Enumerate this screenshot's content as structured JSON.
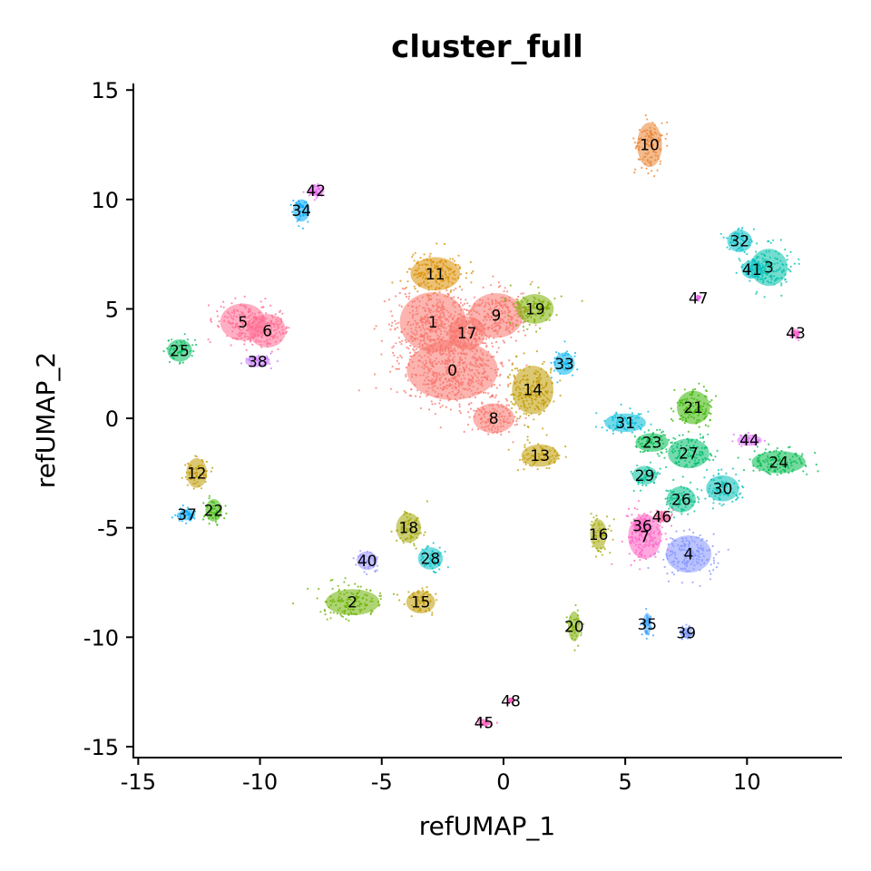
{
  "chart_data": {
    "type": "scatter",
    "title": "cluster_full",
    "xlabel": "refUMAP_1",
    "ylabel": "refUMAP_2",
    "xlim": [
      -15.2,
      13.9
    ],
    "ylim": [
      -15.5,
      15.3
    ],
    "xticks": [
      -15,
      -10,
      -5,
      0,
      5,
      10
    ],
    "xtick_labels": [
      "-15",
      "-10",
      "-5",
      "0",
      "5",
      "10"
    ],
    "yticks": [
      -15,
      -10,
      -5,
      0,
      5,
      10,
      15
    ],
    "ytick_labels": [
      "-15",
      "-10",
      "-5",
      "0",
      "5",
      "10",
      "15"
    ],
    "legend": "none",
    "clusters": [
      {
        "label": "0",
        "x": -2.1,
        "y": 2.2,
        "color": "#F8766D",
        "rx": 2.2,
        "ry": 1.6
      },
      {
        "label": "1",
        "x": -2.9,
        "y": 4.4,
        "color": "#F8766D",
        "rx": 1.6,
        "ry": 1.6
      },
      {
        "label": "2",
        "x": -6.2,
        "y": -8.4,
        "color": "#6BB100",
        "rx": 1.3,
        "ry": 0.7
      },
      {
        "label": "3",
        "x": 10.9,
        "y": 6.9,
        "color": "#00C1AA",
        "rx": 0.9,
        "ry": 1.0
      },
      {
        "label": "4",
        "x": 7.6,
        "y": -6.2,
        "color": "#8494FF",
        "rx": 1.1,
        "ry": 1.0
      },
      {
        "label": "5",
        "x": -10.7,
        "y": 4.4,
        "color": "#FF6C91",
        "rx": 1.1,
        "ry": 1.0
      },
      {
        "label": "6",
        "x": -9.7,
        "y": 4.0,
        "color": "#FF6C91",
        "rx": 0.9,
        "ry": 0.9
      },
      {
        "label": "7",
        "x": 5.8,
        "y": -5.4,
        "color": "#FF61C3",
        "rx": 0.8,
        "ry": 1.2
      },
      {
        "label": "8",
        "x": -0.4,
        "y": 0.0,
        "color": "#F8766D",
        "rx": 1.0,
        "ry": 0.8
      },
      {
        "label": "9",
        "x": -0.3,
        "y": 4.7,
        "color": "#F8766D",
        "rx": 1.3,
        "ry": 1.2
      },
      {
        "label": "10",
        "x": 6.0,
        "y": 12.5,
        "color": "#EA8331",
        "rx": 0.6,
        "ry": 1.2
      },
      {
        "label": "11",
        "x": -2.8,
        "y": 6.6,
        "color": "#DB8E00",
        "rx": 1.2,
        "ry": 0.9
      },
      {
        "label": "12",
        "x": -12.6,
        "y": -2.5,
        "color": "#C09B00",
        "rx": 0.5,
        "ry": 0.8
      },
      {
        "label": "13",
        "x": 1.5,
        "y": -1.7,
        "color": "#C09B00",
        "rx": 0.9,
        "ry": 0.6
      },
      {
        "label": "14",
        "x": 1.2,
        "y": 1.3,
        "color": "#C09B00",
        "rx": 1.0,
        "ry": 1.3
      },
      {
        "label": "15",
        "x": -3.4,
        "y": -8.4,
        "color": "#C09B00",
        "rx": 0.7,
        "ry": 0.6
      },
      {
        "label": "16",
        "x": 3.9,
        "y": -5.3,
        "color": "#A3A500",
        "rx": 0.4,
        "ry": 0.8
      },
      {
        "label": "17",
        "x": -1.5,
        "y": 3.9,
        "color": "#F8766D",
        "rx": 0.9,
        "ry": 0.9
      },
      {
        "label": "18",
        "x": -3.9,
        "y": -5.0,
        "color": "#A3A500",
        "rx": 0.6,
        "ry": 0.8
      },
      {
        "label": "19",
        "x": 1.3,
        "y": 5.0,
        "color": "#7CAE00",
        "rx": 0.9,
        "ry": 0.8
      },
      {
        "label": "20",
        "x": 2.9,
        "y": -9.5,
        "color": "#7CAE00",
        "rx": 0.3,
        "ry": 0.8
      },
      {
        "label": "21",
        "x": 7.8,
        "y": 0.5,
        "color": "#39B600",
        "rx": 0.8,
        "ry": 0.9
      },
      {
        "label": "22",
        "x": -11.9,
        "y": -4.2,
        "color": "#39B600",
        "rx": 0.4,
        "ry": 0.6
      },
      {
        "label": "23",
        "x": 6.1,
        "y": -1.1,
        "color": "#00BB4E",
        "rx": 0.8,
        "ry": 0.5
      },
      {
        "label": "24",
        "x": 11.3,
        "y": -2.0,
        "color": "#00BB4E",
        "rx": 1.3,
        "ry": 0.6
      },
      {
        "label": "25",
        "x": -13.3,
        "y": 3.1,
        "color": "#00BD5C",
        "rx": 0.6,
        "ry": 0.6
      },
      {
        "label": "26",
        "x": 7.3,
        "y": -3.7,
        "color": "#00C08B",
        "rx": 0.7,
        "ry": 0.7
      },
      {
        "label": "27",
        "x": 7.6,
        "y": -1.6,
        "color": "#00BE6C",
        "rx": 1.0,
        "ry": 0.8
      },
      {
        "label": "28",
        "x": -3.0,
        "y": -6.4,
        "color": "#00BFC4",
        "rx": 0.6,
        "ry": 0.6
      },
      {
        "label": "29",
        "x": 5.8,
        "y": -2.6,
        "color": "#00C19A",
        "rx": 0.6,
        "ry": 0.5
      },
      {
        "label": "30",
        "x": 9.0,
        "y": -3.2,
        "color": "#00C0B8",
        "rx": 0.8,
        "ry": 0.7
      },
      {
        "label": "31",
        "x": 5.0,
        "y": -0.2,
        "color": "#00BCD8",
        "rx": 1.0,
        "ry": 0.5
      },
      {
        "label": "32",
        "x": 9.7,
        "y": 8.1,
        "color": "#00BFC4",
        "rx": 0.6,
        "ry": 0.6
      },
      {
        "label": "33",
        "x": 2.5,
        "y": 2.5,
        "color": "#00B4F0",
        "rx": 0.5,
        "ry": 0.6
      },
      {
        "label": "34",
        "x": -8.3,
        "y": 9.5,
        "color": "#00A9FF",
        "rx": 0.4,
        "ry": 0.6
      },
      {
        "label": "35",
        "x": 5.9,
        "y": -9.4,
        "color": "#35A2FF",
        "rx": 0.2,
        "ry": 0.6
      },
      {
        "label": "36",
        "x": 5.7,
        "y": -4.9,
        "color": "#FF61C3",
        "rx": 0.4,
        "ry": 0.4
      },
      {
        "label": "37",
        "x": -13.0,
        "y": -4.4,
        "color": "#00A9FF",
        "rx": 0.4,
        "ry": 0.3
      },
      {
        "label": "38",
        "x": -10.1,
        "y": 2.6,
        "color": "#C77CFF",
        "rx": 0.6,
        "ry": 0.3
      },
      {
        "label": "39",
        "x": 7.5,
        "y": -9.8,
        "color": "#7997FF",
        "rx": 0.3,
        "ry": 0.3
      },
      {
        "label": "40",
        "x": -5.6,
        "y": -6.5,
        "color": "#9590FF",
        "rx": 0.5,
        "ry": 0.5
      },
      {
        "label": "41",
        "x": 10.2,
        "y": 6.8,
        "color": "#00BFC4",
        "rx": 0.5,
        "ry": 0.5
      },
      {
        "label": "42",
        "x": -7.7,
        "y": 10.4,
        "color": "#E76BF3",
        "rx": 0.4,
        "ry": 0.3
      },
      {
        "label": "43",
        "x": 12.0,
        "y": 3.9,
        "color": "#FD61D1",
        "rx": 0.2,
        "ry": 0.2
      },
      {
        "label": "44",
        "x": 10.1,
        "y": -1.0,
        "color": "#DC71FA",
        "rx": 0.6,
        "ry": 0.3
      },
      {
        "label": "45",
        "x": -0.8,
        "y": -13.9,
        "color": "#FF62BC",
        "rx": 0.3,
        "ry": 0.2
      },
      {
        "label": "46",
        "x": 6.5,
        "y": -4.5,
        "color": "#FF67A4",
        "rx": 0.4,
        "ry": 0.3
      },
      {
        "label": "47",
        "x": 8.0,
        "y": 5.5,
        "color": "#E76BF3",
        "rx": 0.1,
        "ry": 0.1
      },
      {
        "label": "48",
        "x": 0.3,
        "y": -12.9,
        "color": "#FF61C3",
        "rx": 0.1,
        "ry": 0.1
      }
    ]
  }
}
